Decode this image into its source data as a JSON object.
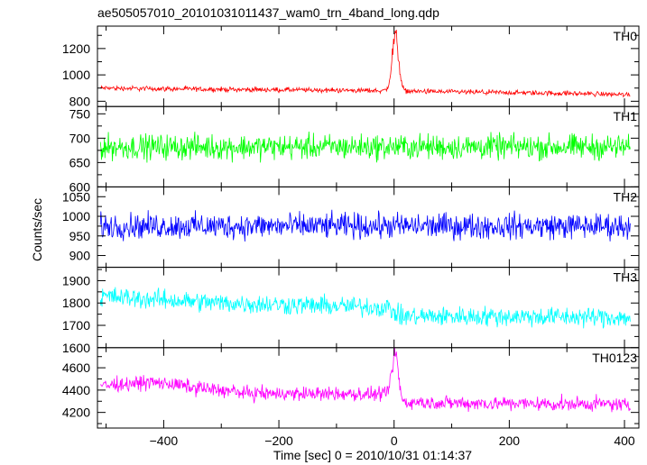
{
  "title": "ae505057010_20101031011437_wam0_trn_4band_long.qdp",
  "xlabel": "Time [sec] 0 = 2010/10/31 01:14:37",
  "ylabel": "Counts/sec",
  "chart_data": {
    "type": "line",
    "title": "ae505057010_20101031011437_wam0_trn_4band_long.qdp",
    "xlabel": "Time [sec] 0 = 2010/10/31 01:14:37",
    "ylabel": "Counts/sec",
    "xlim": [
      -515,
      425
    ],
    "x_ticks": [
      -400,
      -200,
      0,
      200,
      400
    ],
    "x_tick_labels": [
      "−400",
      "−200",
      "0",
      "200",
      "400"
    ],
    "data_x_range": [
      -510,
      410
    ],
    "sample_step": 1,
    "shared_x": true,
    "grid": false,
    "panels": [
      {
        "name": "TH0",
        "color": "#ff0000",
        "ylim": [
          760,
          1370
        ],
        "y_ticks": [
          800,
          900,
          1000,
          1100,
          1200,
          1300
        ],
        "y_tick_labels": [
          "800",
          "1000",
          "1200"
        ],
        "y_tick_label_values": [
          800,
          1000,
          1200
        ],
        "baseline": [
          [
            -510,
            900
          ],
          [
            -300,
            890
          ],
          [
            -10,
            880
          ],
          [
            100,
            870
          ],
          [
            300,
            860
          ],
          [
            410,
            850
          ]
        ],
        "noise_halfwidth": 28,
        "peak": {
          "x": 2,
          "value": 1360,
          "width": 8
        },
        "note": "bright transient near t=0"
      },
      {
        "name": "TH1",
        "color": "#00ff00",
        "ylim": [
          600,
          765
        ],
        "y_ticks": [
          600,
          625,
          650,
          675,
          700,
          725,
          750
        ],
        "y_tick_labels": [
          "600",
          "650",
          "700",
          "750"
        ],
        "y_tick_label_values": [
          600,
          650,
          700,
          750
        ],
        "baseline": [
          [
            -510,
            682
          ],
          [
            410,
            682
          ]
        ],
        "noise_halfwidth": 38,
        "peak": null
      },
      {
        "name": "TH2",
        "color": "#0000ff",
        "ylim": [
          870,
          1075
        ],
        "y_ticks": [
          900,
          925,
          950,
          975,
          1000,
          1025,
          1050,
          1075
        ],
        "y_tick_labels": [
          "900",
          "950",
          "1000",
          "1050"
        ],
        "y_tick_label_values": [
          900,
          950,
          1000,
          1050
        ],
        "baseline": [
          [
            -510,
            975
          ],
          [
            410,
            975
          ]
        ],
        "noise_halfwidth": 48,
        "peak": null
      },
      {
        "name": "TH3",
        "color": "#00ffff",
        "ylim": [
          1600,
          1960
        ],
        "y_ticks": [
          1600,
          1650,
          1700,
          1750,
          1800,
          1850,
          1900,
          1950
        ],
        "y_tick_labels": [
          "1600",
          "1700",
          "1800",
          "1900"
        ],
        "y_tick_label_values": [
          1600,
          1700,
          1800,
          1900
        ],
        "baseline": [
          [
            -510,
            1830
          ],
          [
            -300,
            1800
          ],
          [
            -10,
            1780
          ],
          [
            10,
            1740
          ],
          [
            200,
            1740
          ],
          [
            410,
            1735
          ]
        ],
        "noise_halfwidth": 65,
        "peak": null
      },
      {
        "name": "TH0123",
        "color": "#ff00ff",
        "ylim": [
          4060,
          4780
        ],
        "y_ticks": [
          4100,
          4200,
          4300,
          4400,
          4500,
          4600,
          4700
        ],
        "y_tick_labels": [
          "4200",
          "4400",
          "4600"
        ],
        "y_tick_label_values": [
          4200,
          4400,
          4600
        ],
        "baseline": [
          [
            -510,
            4440
          ],
          [
            -420,
            4470
          ],
          [
            -250,
            4370
          ],
          [
            -10,
            4360
          ],
          [
            10,
            4290
          ],
          [
            200,
            4280
          ],
          [
            410,
            4270
          ]
        ],
        "noise_halfwidth": 95,
        "peak": {
          "x": 2,
          "value": 4790,
          "width": 8
        }
      }
    ]
  }
}
